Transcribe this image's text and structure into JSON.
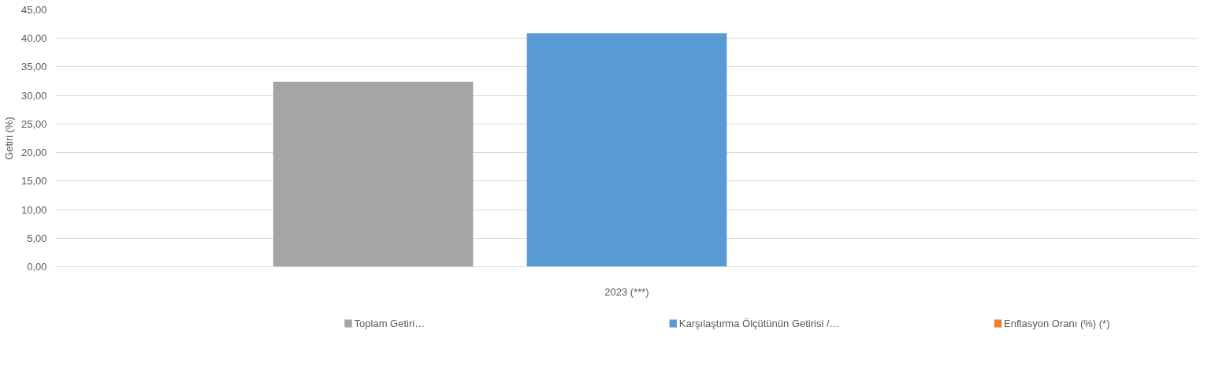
{
  "chart_data": {
    "type": "bar",
    "categories": [
      "2023 (***)"
    ],
    "ylabel": "Getiri (%)",
    "series": [
      {
        "name": "Toplam Getiri…",
        "color": "#a5a5a5",
        "values": [
          32.4
        ]
      },
      {
        "name": "Karşılaştırma Ölçütünün Getirisi /…",
        "color": "#5b9bd5",
        "values": [
          40.9
        ]
      },
      {
        "name": "Enflasyon Oranı (%) (*)",
        "color": "#ed7d31",
        "values": [
          null
        ]
      }
    ],
    "ylim": [
      0,
      45
    ],
    "yticks": [
      {
        "value": 0,
        "label": "0,00"
      },
      {
        "value": 5,
        "label": "5,00"
      },
      {
        "value": 10,
        "label": "10,00"
      },
      {
        "value": 15,
        "label": "15,00"
      },
      {
        "value": 20,
        "label": "20,00"
      },
      {
        "value": 25,
        "label": "25,00"
      },
      {
        "value": 30,
        "label": "30,00"
      },
      {
        "value": 35,
        "label": "35,00"
      },
      {
        "value": 40,
        "label": "40,00"
      },
      {
        "value": 45,
        "label": "45,00"
      }
    ],
    "grid": "y",
    "legend": "bottom"
  }
}
